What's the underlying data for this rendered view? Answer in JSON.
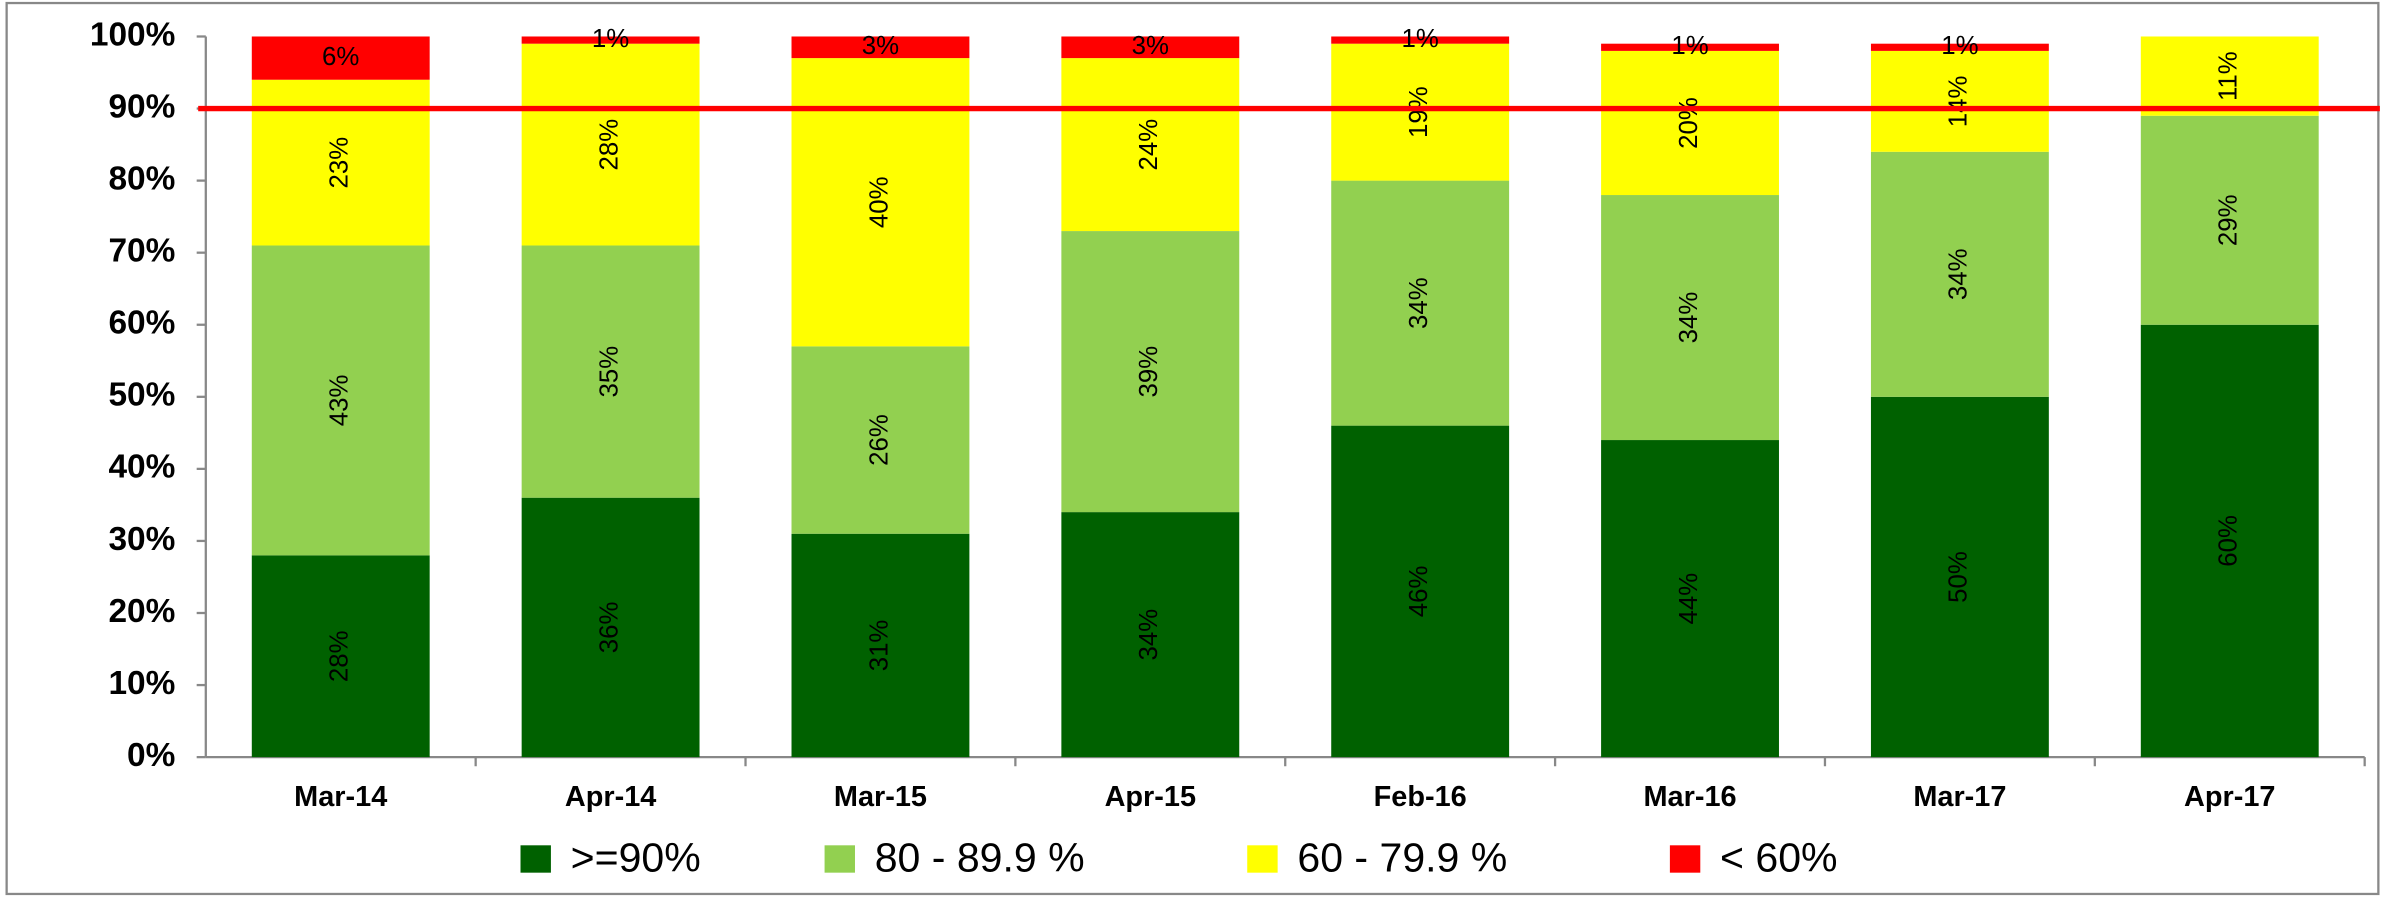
{
  "chart_data": {
    "type": "stacked-bar",
    "categories": [
      "Mar-14",
      "Apr-14",
      "Mar-15",
      "Apr-15",
      "Feb-16",
      "Mar-16",
      "Mar-17",
      "Apr-17"
    ],
    "series": [
      {
        "name": ">=90%",
        "color": "#006100",
        "values": [
          28,
          36,
          31,
          34,
          46,
          44,
          50,
          60
        ],
        "value_labels": [
          "28%",
          "36%",
          "31%",
          "34%",
          "46%",
          "44%",
          "50%",
          "60%"
        ]
      },
      {
        "name": "80 - 89.9 %",
        "color": "#92d050",
        "values": [
          43,
          35,
          26,
          39,
          34,
          34,
          34,
          29
        ],
        "value_labels": [
          "43%",
          "35%",
          "26%",
          "39%",
          "34%",
          "34%",
          "34%",
          "29%"
        ]
      },
      {
        "name": "60 - 79.9 %",
        "color": "#ffff00",
        "values": [
          23,
          28,
          40,
          24,
          19,
          20,
          14,
          11
        ],
        "value_labels": [
          "23%",
          "28%",
          "40%",
          "24%",
          "19%",
          "20%",
          "14%",
          "11%"
        ]
      },
      {
        "name": "< 60%",
        "color": "#ff0000",
        "values": [
          6,
          1,
          3,
          3,
          1,
          1,
          1,
          null
        ],
        "value_labels": [
          "6%",
          "1%",
          "3%",
          "3%",
          "1%",
          "1%",
          "1%",
          null
        ]
      }
    ],
    "ylim": [
      0,
      100
    ],
    "yticks": [
      {
        "value": 0,
        "label": "0%"
      },
      {
        "value": 10,
        "label": "10%"
      },
      {
        "value": 20,
        "label": "20%"
      },
      {
        "value": 30,
        "label": "30%"
      },
      {
        "value": 40,
        "label": "40%"
      },
      {
        "value": 50,
        "label": "50%"
      },
      {
        "value": 60,
        "label": "60%"
      },
      {
        "value": 70,
        "label": "70%"
      },
      {
        "value": 80,
        "label": "80%"
      },
      {
        "value": 90,
        "label": "90%"
      },
      {
        "value": 100,
        "label": "100%"
      }
    ],
    "reference_line": {
      "value": 90,
      "color": "#ff0000"
    },
    "legend": "bottom"
  }
}
